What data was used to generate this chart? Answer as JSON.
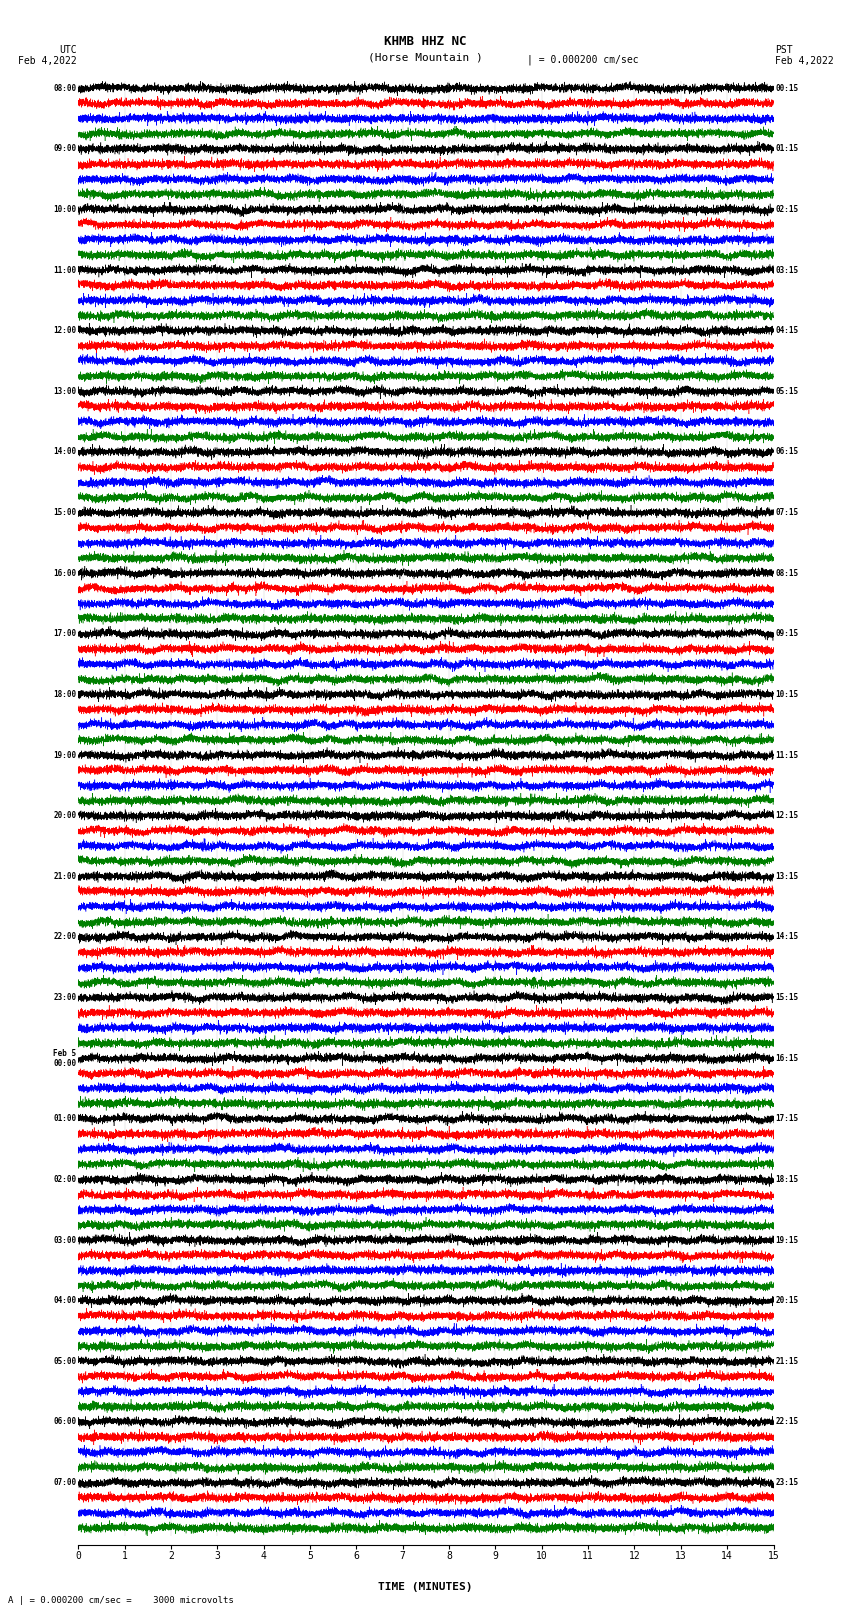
{
  "title_line1": "KHMB HHZ NC",
  "title_line2": "(Horse Mountain )",
  "scale_text": "| = 0.000200 cm/sec",
  "bottom_label": "A | = 0.000200 cm/sec =    3000 microvolts",
  "utc_label": "UTC",
  "pst_label": "PST",
  "date_left": "Feb 4,2022",
  "date_right": "Feb 4,2022",
  "xlabel": "TIME (MINUTES)",
  "left_times": [
    "08:00",
    "09:00",
    "10:00",
    "11:00",
    "12:00",
    "13:00",
    "14:00",
    "15:00",
    "16:00",
    "17:00",
    "18:00",
    "19:00",
    "20:00",
    "21:00",
    "22:00",
    "23:00",
    "Feb 5\n00:00",
    "01:00",
    "02:00",
    "03:00",
    "04:00",
    "05:00",
    "06:00",
    "07:00"
  ],
  "right_times": [
    "00:15",
    "01:15",
    "02:15",
    "03:15",
    "04:15",
    "05:15",
    "06:15",
    "07:15",
    "08:15",
    "09:15",
    "10:15",
    "11:15",
    "12:15",
    "13:15",
    "14:15",
    "15:15",
    "16:15",
    "17:15",
    "18:15",
    "19:15",
    "20:15",
    "21:15",
    "22:15",
    "23:15"
  ],
  "num_rows": 24,
  "traces_per_row": 4,
  "trace_colors": [
    "black",
    "red",
    "blue",
    "green"
  ],
  "bg_color": "white",
  "grid_color": "#888888",
  "xmin": 0,
  "xmax": 15,
  "figwidth": 8.5,
  "figheight": 16.13,
  "row_amplitudes": [
    1.0,
    1.0,
    1.2,
    0.8,
    0.8,
    0.9,
    1.0,
    0.9,
    1.0,
    1.0,
    1.0,
    1.0,
    1.0,
    4.0,
    3.5,
    1.5,
    0.8,
    0.8,
    1.2,
    0.9,
    0.7,
    1.5,
    1.0,
    1.0
  ]
}
